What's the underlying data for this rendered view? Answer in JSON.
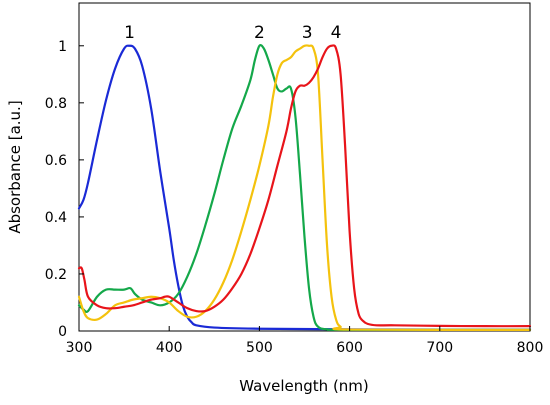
{
  "chart_data": {
    "type": "line",
    "xlabel": "Wavelength (nm)",
    "ylabel": "Absorbance [a.u.]",
    "xlim": [
      300,
      800
    ],
    "ylim": [
      0,
      1.15
    ],
    "xticks": [
      300,
      400,
      500,
      600,
      700,
      800
    ],
    "yticks": [
      0,
      0.2,
      0.4,
      0.6,
      0.8,
      1
    ],
    "yticklabels": [
      "0",
      "0.2",
      "0.4",
      "0.6",
      "0.8",
      "1"
    ],
    "grid": false,
    "legend": "none",
    "series": [
      {
        "name": "1",
        "color": "#1a2ad6",
        "label_at": [
          356,
          1.0
        ],
        "points": [
          [
            300,
            0.43
          ],
          [
            305,
            0.46
          ],
          [
            310,
            0.52
          ],
          [
            320,
            0.67
          ],
          [
            330,
            0.81
          ],
          [
            340,
            0.92
          ],
          [
            350,
            0.99
          ],
          [
            356,
            1.0
          ],
          [
            362,
            0.99
          ],
          [
            370,
            0.93
          ],
          [
            380,
            0.78
          ],
          [
            390,
            0.56
          ],
          [
            400,
            0.36
          ],
          [
            405,
            0.25
          ],
          [
            410,
            0.16
          ],
          [
            415,
            0.09
          ],
          [
            420,
            0.05
          ],
          [
            425,
            0.03
          ],
          [
            430,
            0.02
          ],
          [
            450,
            0.012
          ],
          [
            500,
            0.008
          ],
          [
            600,
            0.006
          ],
          [
            700,
            0.005
          ],
          [
            800,
            0.005
          ]
        ]
      },
      {
        "name": "2",
        "color": "#14a84a",
        "label_at": [
          500,
          1.0
        ],
        "points": [
          [
            300,
            0.09
          ],
          [
            305,
            0.075
          ],
          [
            310,
            0.07
          ],
          [
            320,
            0.12
          ],
          [
            330,
            0.145
          ],
          [
            340,
            0.145
          ],
          [
            350,
            0.145
          ],
          [
            357,
            0.15
          ],
          [
            362,
            0.13
          ],
          [
            370,
            0.11
          ],
          [
            380,
            0.1
          ],
          [
            390,
            0.09
          ],
          [
            400,
            0.1
          ],
          [
            410,
            0.13
          ],
          [
            420,
            0.19
          ],
          [
            430,
            0.27
          ],
          [
            440,
            0.37
          ],
          [
            450,
            0.48
          ],
          [
            460,
            0.6
          ],
          [
            470,
            0.71
          ],
          [
            480,
            0.79
          ],
          [
            490,
            0.88
          ],
          [
            495,
            0.95
          ],
          [
            500,
            1.0
          ],
          [
            505,
            0.99
          ],
          [
            510,
            0.95
          ],
          [
            515,
            0.9
          ],
          [
            520,
            0.85
          ],
          [
            525,
            0.84
          ],
          [
            530,
            0.85
          ],
          [
            535,
            0.85
          ],
          [
            540,
            0.75
          ],
          [
            545,
            0.55
          ],
          [
            550,
            0.33
          ],
          [
            555,
            0.15
          ],
          [
            560,
            0.05
          ],
          [
            565,
            0.015
          ],
          [
            575,
            0.006
          ],
          [
            600,
            0.004
          ],
          [
            800,
            0.004
          ]
        ]
      },
      {
        "name": "3",
        "color": "#f4c20d",
        "label_at": [
          553,
          1.0
        ],
        "points": [
          [
            300,
            0.12
          ],
          [
            305,
            0.07
          ],
          [
            310,
            0.045
          ],
          [
            320,
            0.04
          ],
          [
            330,
            0.06
          ],
          [
            340,
            0.09
          ],
          [
            350,
            0.1
          ],
          [
            360,
            0.11
          ],
          [
            370,
            0.115
          ],
          [
            380,
            0.12
          ],
          [
            390,
            0.115
          ],
          [
            400,
            0.1
          ],
          [
            410,
            0.07
          ],
          [
            420,
            0.05
          ],
          [
            430,
            0.05
          ],
          [
            440,
            0.07
          ],
          [
            450,
            0.11
          ],
          [
            460,
            0.17
          ],
          [
            470,
            0.25
          ],
          [
            480,
            0.35
          ],
          [
            490,
            0.46
          ],
          [
            500,
            0.58
          ],
          [
            510,
            0.72
          ],
          [
            515,
            0.82
          ],
          [
            520,
            0.9
          ],
          [
            525,
            0.94
          ],
          [
            530,
            0.95
          ],
          [
            535,
            0.96
          ],
          [
            540,
            0.98
          ],
          [
            545,
            0.99
          ],
          [
            550,
            1.0
          ],
          [
            555,
            1.0
          ],
          [
            560,
            0.99
          ],
          [
            565,
            0.9
          ],
          [
            570,
            0.6
          ],
          [
            575,
            0.3
          ],
          [
            580,
            0.12
          ],
          [
            585,
            0.04
          ],
          [
            590,
            0.015
          ],
          [
            600,
            0.005
          ],
          [
            800,
            0.004
          ]
        ]
      },
      {
        "name": "4",
        "color": "#e8141a",
        "label_at": [
          585,
          1.0
        ],
        "points": [
          [
            300,
            0.22
          ],
          [
            303,
            0.22
          ],
          [
            306,
            0.18
          ],
          [
            310,
            0.12
          ],
          [
            320,
            0.09
          ],
          [
            330,
            0.08
          ],
          [
            340,
            0.08
          ],
          [
            350,
            0.085
          ],
          [
            360,
            0.09
          ],
          [
            370,
            0.1
          ],
          [
            380,
            0.11
          ],
          [
            390,
            0.115
          ],
          [
            395,
            0.12
          ],
          [
            400,
            0.12
          ],
          [
            410,
            0.1
          ],
          [
            420,
            0.08
          ],
          [
            430,
            0.07
          ],
          [
            440,
            0.07
          ],
          [
            450,
            0.085
          ],
          [
            460,
            0.11
          ],
          [
            470,
            0.15
          ],
          [
            480,
            0.2
          ],
          [
            490,
            0.27
          ],
          [
            500,
            0.36
          ],
          [
            510,
            0.46
          ],
          [
            520,
            0.58
          ],
          [
            530,
            0.7
          ],
          [
            535,
            0.78
          ],
          [
            540,
            0.84
          ],
          [
            545,
            0.86
          ],
          [
            550,
            0.86
          ],
          [
            555,
            0.87
          ],
          [
            560,
            0.89
          ],
          [
            565,
            0.92
          ],
          [
            570,
            0.96
          ],
          [
            575,
            0.99
          ],
          [
            580,
            1.0
          ],
          [
            585,
            0.99
          ],
          [
            590,
            0.9
          ],
          [
            595,
            0.65
          ],
          [
            600,
            0.35
          ],
          [
            605,
            0.15
          ],
          [
            610,
            0.06
          ],
          [
            615,
            0.035
          ],
          [
            620,
            0.025
          ],
          [
            630,
            0.02
          ],
          [
            650,
            0.02
          ],
          [
            700,
            0.018
          ],
          [
            750,
            0.017
          ],
          [
            800,
            0.017
          ]
        ]
      }
    ]
  }
}
